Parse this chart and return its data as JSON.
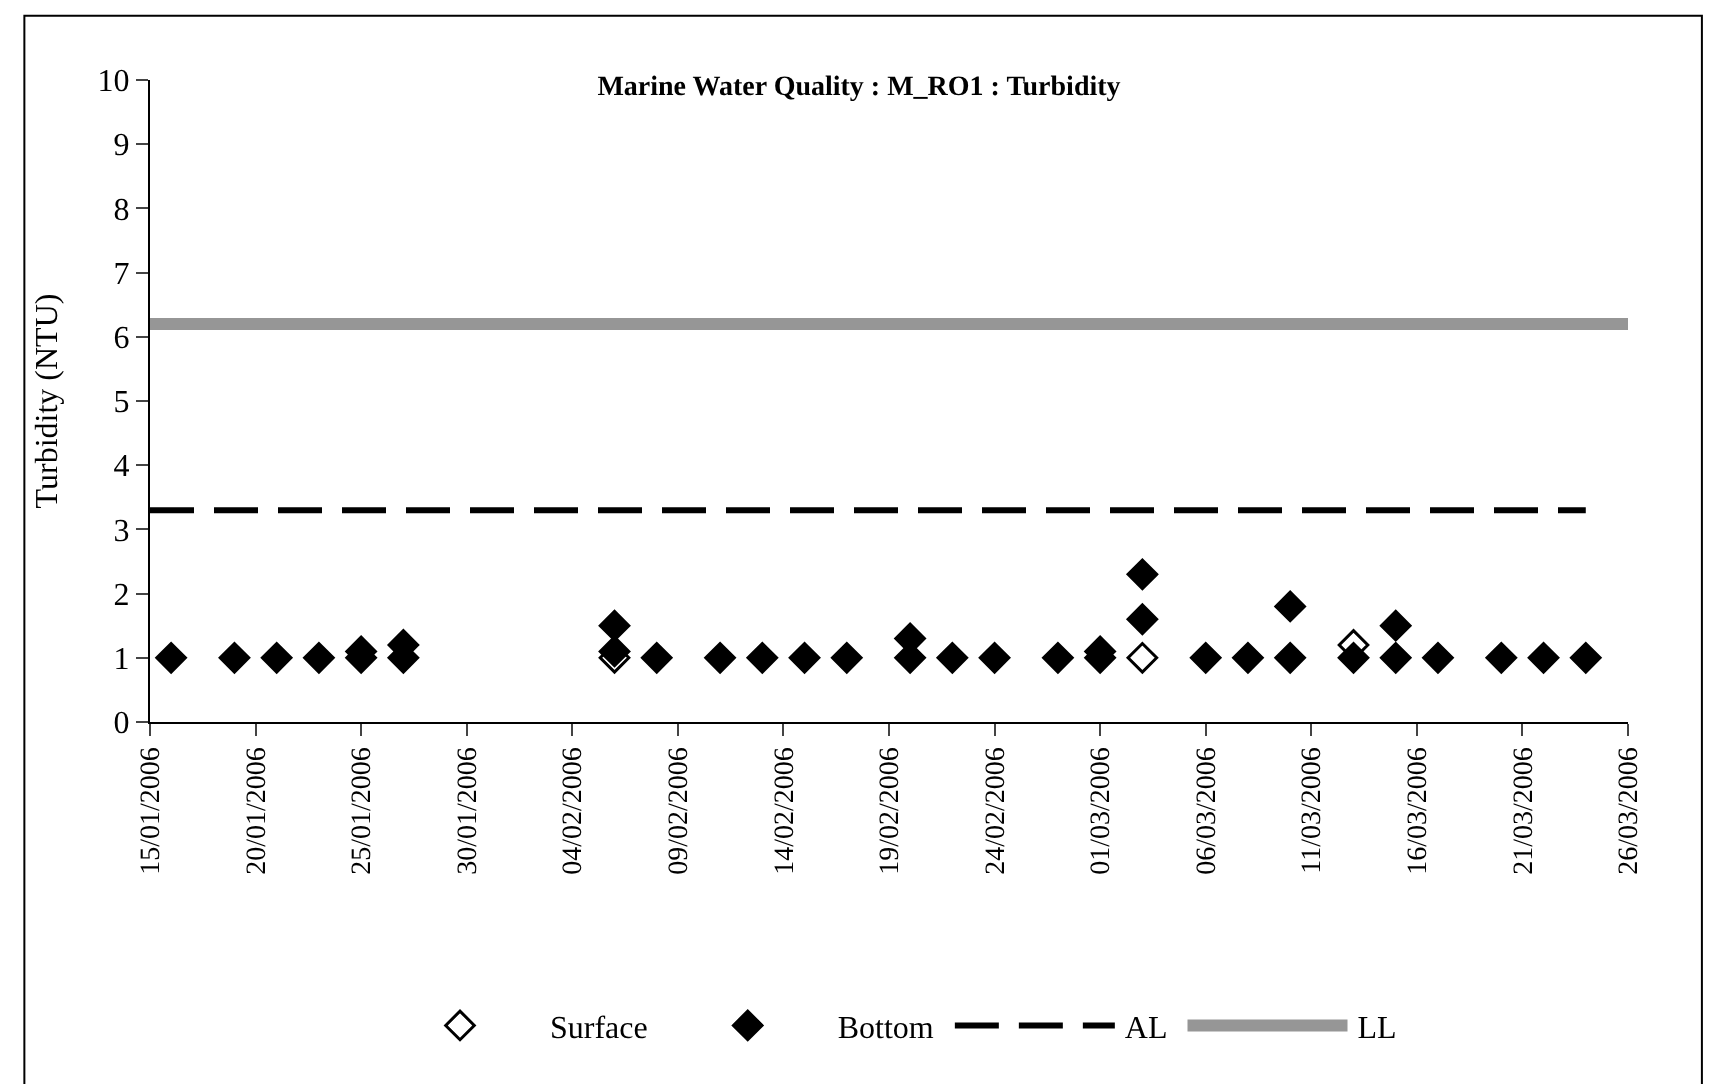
{
  "chart_data": {
    "type": "scatter",
    "title": "Marine Water Quality : M_RO1 : Turbidity",
    "ylabel": "Turbidity (NTU)",
    "xlim": [
      "2006-01-15",
      "2006-03-26"
    ],
    "xticks": [
      {
        "value": "2006-01-15",
        "label": "15/01/2006"
      },
      {
        "value": "2006-01-20",
        "label": "20/01/2006"
      },
      {
        "value": "2006-01-25",
        "label": "25/01/2006"
      },
      {
        "value": "2006-01-30",
        "label": "30/01/2006"
      },
      {
        "value": "2006-02-04",
        "label": "04/02/2006"
      },
      {
        "value": "2006-02-09",
        "label": "09/02/2006"
      },
      {
        "value": "2006-02-14",
        "label": "14/02/2006"
      },
      {
        "value": "2006-02-19",
        "label": "19/02/2006"
      },
      {
        "value": "2006-02-24",
        "label": "24/02/2006"
      },
      {
        "value": "2006-03-01",
        "label": "01/03/2006"
      },
      {
        "value": "2006-03-06",
        "label": "06/03/2006"
      },
      {
        "value": "2006-03-11",
        "label": "11/03/2006"
      },
      {
        "value": "2006-03-16",
        "label": "16/03/2006"
      },
      {
        "value": "2006-03-21",
        "label": "21/03/2006"
      },
      {
        "value": "2006-03-26",
        "label": "26/03/2006"
      }
    ],
    "ylim": [
      0,
      10
    ],
    "yticks": [
      0,
      1,
      2,
      3,
      4,
      5,
      6,
      7,
      8,
      9,
      10
    ],
    "legend": "bottom",
    "series": [
      {
        "name": "Surface",
        "marker": "diamond",
        "color": "#ffffff",
        "x": [
          "2006-02-06",
          "2006-03-03",
          "2006-03-13"
        ],
        "values": [
          1.0,
          1.0,
          1.2
        ]
      },
      {
        "name": "Bottom",
        "marker": "diamond",
        "color": "#000000",
        "x": [
          "2006-01-16",
          "2006-01-19",
          "2006-01-21",
          "2006-01-23",
          "2006-01-25",
          "2006-01-25",
          "2006-01-27",
          "2006-01-27",
          "2006-02-06",
          "2006-02-06",
          "2006-02-08",
          "2006-02-11",
          "2006-02-13",
          "2006-02-15",
          "2006-02-17",
          "2006-02-20",
          "2006-02-20",
          "2006-02-22",
          "2006-02-24",
          "2006-02-27",
          "2006-03-01",
          "2006-03-01",
          "2006-03-03",
          "2006-03-03",
          "2006-03-06",
          "2006-03-08",
          "2006-03-10",
          "2006-03-10",
          "2006-03-13",
          "2006-03-15",
          "2006-03-15",
          "2006-03-17",
          "2006-03-20",
          "2006-03-22",
          "2006-03-24"
        ],
        "values": [
          1.0,
          1.0,
          1.0,
          1.0,
          1.0,
          1.1,
          1.0,
          1.2,
          1.1,
          1.5,
          1.0,
          1.0,
          1.0,
          1.0,
          1.0,
          1.0,
          1.3,
          1.0,
          1.0,
          1.0,
          1.0,
          1.1,
          1.6,
          2.3,
          1.0,
          1.0,
          1.0,
          1.8,
          1.0,
          1.0,
          1.5,
          1.0,
          1.0,
          1.0,
          1.0
        ]
      },
      {
        "name": "AL",
        "type": "line",
        "color": "#000000",
        "line_style": "dashed",
        "x": [
          "2006-01-15",
          "2006-03-24"
        ],
        "values": [
          3.3,
          3.3
        ]
      },
      {
        "name": "LL",
        "type": "line",
        "color": "#969696",
        "line_style": "solid",
        "x": [
          "2006-01-15",
          "2006-03-26"
        ],
        "values": [
          6.2,
          6.2
        ]
      }
    ]
  }
}
